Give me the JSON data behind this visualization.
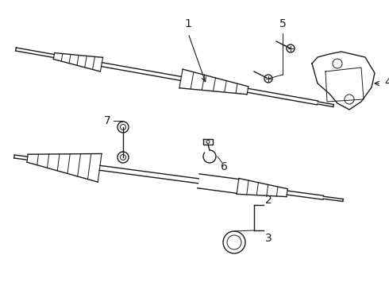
{
  "bg_color": "#ffffff",
  "line_color": "#1a1a1a",
  "lw": 1.0,
  "fig_width": 4.9,
  "fig_height": 3.6,
  "dpi": 100,
  "label_fontsize": 10
}
